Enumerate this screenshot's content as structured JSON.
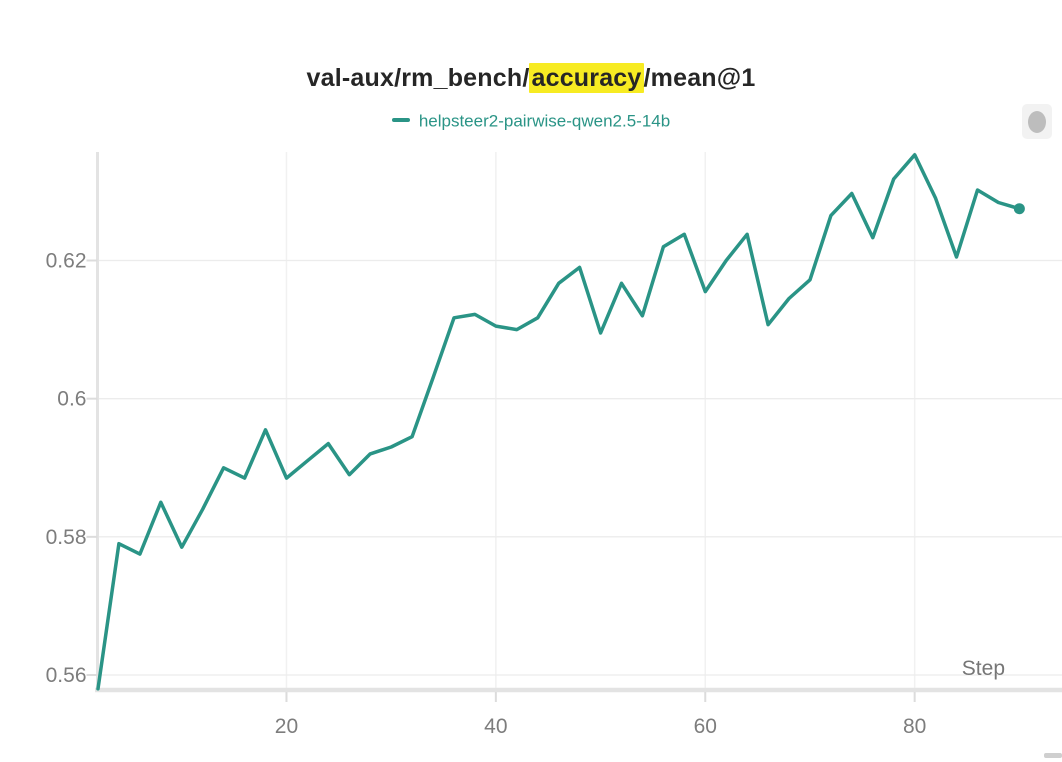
{
  "panel": {
    "title_prefix": "val-aux/rm_bench/",
    "title_highlight": "accuracy",
    "title_suffix": "/mean@1",
    "highlight_color": "#f7eb22"
  },
  "legend": {
    "label": "helpsteer2-pairwise-qwen2.5-14b",
    "color": "#2a9486"
  },
  "chart_data": {
    "type": "line",
    "title": "val-aux/rm_bench/accuracy/mean@1",
    "xlabel": "Step",
    "ylabel": "",
    "xlim": [
      2,
      94.3
    ],
    "ylim": [
      0.558,
      0.6357
    ],
    "xticks": [
      20,
      40,
      60,
      80
    ],
    "xtick_labels": [
      "20",
      "40",
      "60",
      "80"
    ],
    "yticks": [
      0.56,
      0.58,
      0.6,
      0.62
    ],
    "ytick_labels": [
      "0.56",
      "0.58",
      "0.6",
      "0.62"
    ],
    "grid": true,
    "legend_position": "top-center",
    "end_marker": true,
    "series": [
      {
        "name": "helpsteer2-pairwise-qwen2.5-14b",
        "color": "#2a9486",
        "x": [
          2,
          4,
          6,
          8,
          10,
          12,
          14,
          16,
          18,
          20,
          22,
          24,
          26,
          28,
          30,
          32,
          34,
          36,
          38,
          40,
          42,
          44,
          46,
          48,
          50,
          52,
          54,
          56,
          58,
          60,
          62,
          64,
          66,
          68,
          70,
          72,
          74,
          76,
          78,
          80,
          82,
          84,
          86,
          88,
          90
        ],
        "y": [
          0.558,
          0.579,
          0.5775,
          0.585,
          0.5785,
          0.584,
          0.59,
          0.5885,
          0.5955,
          0.5885,
          0.591,
          0.5935,
          0.589,
          0.592,
          0.593,
          0.5945,
          0.603,
          0.6117,
          0.6122,
          0.6105,
          0.61,
          0.6117,
          0.6167,
          0.619,
          0.6095,
          0.6167,
          0.612,
          0.622,
          0.6238,
          0.6155,
          0.62,
          0.6238,
          0.6107,
          0.6145,
          0.6172,
          0.6265,
          0.6297,
          0.6233,
          0.6318,
          0.6353,
          0.629,
          0.6205,
          0.6302,
          0.6284,
          0.6275
        ]
      }
    ]
  },
  "colors": {
    "grid_h": "#ececec",
    "grid_v": "#f1f1f1",
    "axis": "#e3e3e3",
    "tick": "#dcdcdc",
    "tick_label": "#7d7d7d",
    "title_text": "#262626"
  }
}
